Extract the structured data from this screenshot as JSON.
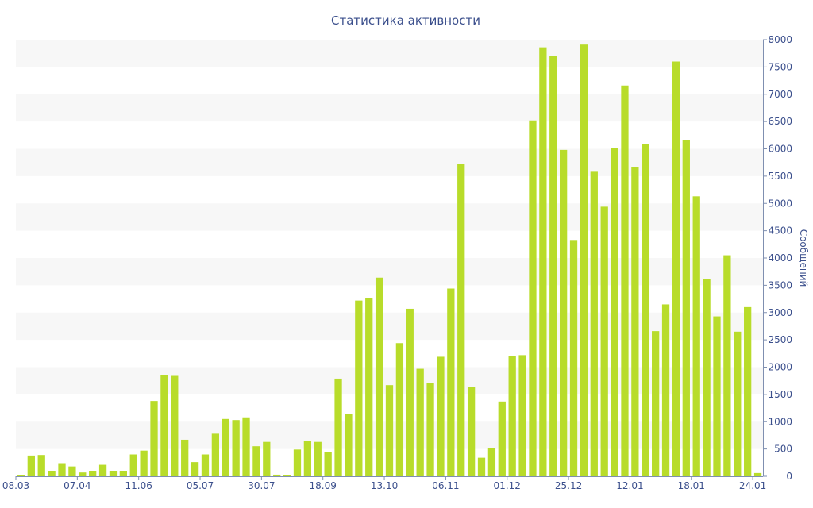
{
  "chart_data": {
    "type": "bar",
    "title": "Статистика активности",
    "xlabel": "",
    "ylabel": "Сообщений",
    "ylim": [
      0,
      8000
    ],
    "y_ticks": [
      0,
      500,
      1000,
      1500,
      2000,
      2500,
      3000,
      3500,
      4000,
      4500,
      5000,
      5500,
      6000,
      6500,
      7000,
      7500,
      8000
    ],
    "y_axis_position": "right",
    "grid": "alternating horizontal bands",
    "legend": "none",
    "x_tick_labels": [
      {
        "label": "08.03",
        "index": 0
      },
      {
        "label": "07.04",
        "index": 6
      },
      {
        "label": "11.06",
        "index": 12
      },
      {
        "label": "05.07",
        "index": 18
      },
      {
        "label": "30.07",
        "index": 24
      },
      {
        "label": "18.09",
        "index": 30
      },
      {
        "label": "13.10",
        "index": 36
      },
      {
        "label": "06.11",
        "index": 42
      },
      {
        "label": "01.12",
        "index": 48
      },
      {
        "label": "25.12",
        "index": 54
      },
      {
        "label": "12.01",
        "index": 60
      },
      {
        "label": "18.01",
        "index": 66
      },
      {
        "label": "24.01",
        "index": 72
      }
    ],
    "values": [
      20,
      380,
      390,
      90,
      240,
      180,
      70,
      100,
      210,
      90,
      90,
      400,
      470,
      1380,
      1850,
      1840,
      670,
      260,
      400,
      780,
      1050,
      1030,
      1080,
      550,
      630,
      30,
      15,
      490,
      640,
      630,
      440,
      1790,
      1140,
      3220,
      3260,
      3640,
      1670,
      2440,
      3070,
      1970,
      1710,
      2190,
      3440,
      5730,
      1640,
      340,
      510,
      1370,
      2210,
      2220,
      6520,
      7860,
      7700,
      5980,
      4330,
      7910,
      5580,
      4940,
      6020,
      7160,
      5670,
      6080,
      2660,
      3150,
      7600,
      6160,
      5130,
      3620,
      2930,
      4050,
      2650,
      3100,
      60
    ],
    "colors": {
      "bar": "#b8dc2a",
      "band": "#f7f7f7",
      "text": "#3b4f8c",
      "axis": "#7f8fb0"
    }
  }
}
